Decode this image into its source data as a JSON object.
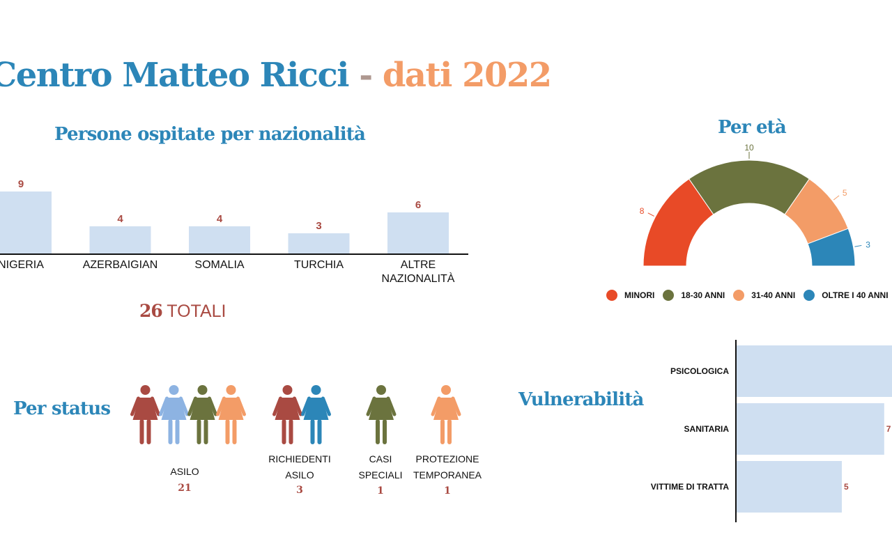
{
  "title": {
    "part1": "Centro Matteo Ricci",
    "sep": " - ",
    "part2": "dati 2022"
  },
  "colors": {
    "title_blue": "#2c86b8",
    "title_orange": "#f39c67",
    "bar_fill": "#cfdff1",
    "value_red": "#a94a42",
    "minori": "#e84a27",
    "eta_18_30": "#6b733e",
    "eta_31_40": "#f39c67",
    "oltre_40": "#2c86b8"
  },
  "chart_data": [
    {
      "type": "bar",
      "title": "Persone ospitate per nazionalità",
      "categories": [
        "NIGERIA",
        "AZERBAIGIAN",
        "SOMALIA",
        "TURCHIA",
        "ALTRE NAZIONALITÀ"
      ],
      "category_lines": [
        [
          "NIGERIA"
        ],
        [
          "AZERBAIGIAN"
        ],
        [
          "SOMALIA"
        ],
        [
          "TURCHIA"
        ],
        [
          "ALTRE",
          "NAZIONALITÀ"
        ]
      ],
      "values": [
        9,
        4,
        4,
        3,
        6
      ],
      "total_value": "26",
      "total_label": "TOTALI"
    },
    {
      "type": "pie",
      "title": "Per età",
      "labels": [
        "MINORI",
        "18-30 ANNI",
        "31-40 ANNI",
        "OLTRE I 40 ANNI"
      ],
      "values": [
        8,
        10,
        5,
        3
      ],
      "colors": [
        "#e84a27",
        "#6b733e",
        "#f39c67",
        "#2c86b8"
      ],
      "legend_position": "bottom"
    },
    {
      "type": "table",
      "title": "Per status",
      "groups": [
        {
          "label": "ASILO",
          "label_lines": [
            "ASILO"
          ],
          "count": "21",
          "icon_colors": [
            "#a94a42",
            "#8db3e2",
            "#6b733e",
            "#f39c67"
          ]
        },
        {
          "label": "RICHIEDENTI ASILO",
          "label_lines": [
            "RICHIEDENTI",
            "ASILO"
          ],
          "count": "3",
          "icon_colors": [
            "#a94a42",
            "#2c86b8"
          ]
        },
        {
          "label": "CASI SPECIALI",
          "label_lines": [
            "CASI",
            "SPECIALI"
          ],
          "count": "1",
          "icon_colors": [
            "#6b733e"
          ]
        },
        {
          "label": "PROTEZIONE TEMPORANEA",
          "label_lines": [
            "PROTEZIONE",
            "TEMPORANEA"
          ],
          "count": "1",
          "icon_colors": [
            "#f39c67"
          ]
        }
      ]
    },
    {
      "type": "bar",
      "orientation": "horizontal",
      "title": "Vulnerabilità",
      "categories": [
        "PSICOLOGICA",
        "SANITARIA",
        "VITTIME DI TRATTA"
      ],
      "values": [
        7.5,
        7,
        5
      ],
      "value_labels": [
        "",
        "7",
        "5"
      ]
    }
  ]
}
